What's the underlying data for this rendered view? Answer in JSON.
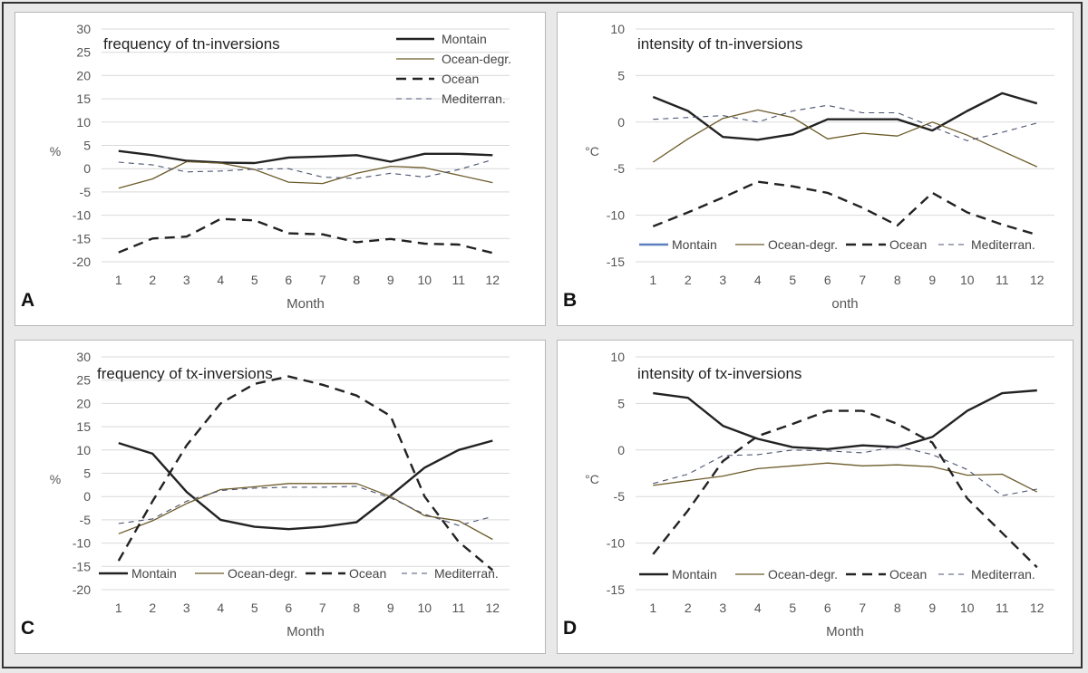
{
  "chart_data": [
    {
      "type": "line",
      "panel_label": "A",
      "title": "frequency of tn-inversions",
      "xlabel": "Month",
      "ylabel": "%",
      "ylim": [
        -20,
        30
      ],
      "yticks": [
        30,
        25,
        20,
        15,
        10,
        5,
        0,
        -5,
        -10,
        -15,
        -20
      ],
      "categories": [
        1,
        2,
        3,
        4,
        5,
        6,
        7,
        8,
        9,
        10,
        11,
        12
      ],
      "legend_position": "top-right",
      "series": [
        {
          "name": "Montain",
          "style": "solid-thick",
          "color": "#222222",
          "values": [
            3.8,
            2.9,
            1.7,
            1.3,
            1.2,
            2.4,
            2.6,
            2.9,
            1.5,
            3.2,
            3.2,
            2.9
          ]
        },
        {
          "name": "Ocean-degr.",
          "style": "solid-thin",
          "color": "#6b5a28",
          "values": [
            -4.2,
            -2.2,
            1.5,
            1.2,
            -0.2,
            -2.9,
            -3.2,
            -1.0,
            0.5,
            0.2,
            -1.4,
            -3.0
          ]
        },
        {
          "name": "Ocean",
          "style": "dash-thick",
          "color": "#222222",
          "values": [
            -18,
            -15,
            -14.6,
            -10.8,
            -11.1,
            -13.9,
            -14.1,
            -15.8,
            -15.1,
            -16.1,
            -16.3,
            -18.1
          ]
        },
        {
          "name": "Mediterran.",
          "style": "dash-thin",
          "color": "#4a5270",
          "values": [
            1.4,
            0.8,
            -0.7,
            -0.5,
            -0.1,
            0,
            -1.8,
            -2.1,
            -1.0,
            -1.8,
            -0.2,
            1.9
          ]
        }
      ]
    },
    {
      "type": "line",
      "panel_label": "B",
      "title": "intensity of tn-inversions",
      "xlabel": "onth",
      "ylabel": "°C",
      "ylim": [
        -15,
        10
      ],
      "yticks": [
        10,
        5,
        0,
        -5,
        -10,
        -15
      ],
      "categories": [
        1,
        2,
        3,
        4,
        5,
        6,
        7,
        8,
        9,
        10,
        11,
        12
      ],
      "legend_position": "bottom",
      "series": [
        {
          "name": "Montain",
          "style": "solid-thick",
          "color": "#222222",
          "legend_color": "#5b7fc0",
          "values": [
            2.7,
            1.2,
            -1.6,
            -1.9,
            -1.3,
            0.3,
            0.3,
            0.3,
            -0.9,
            1.2,
            3.1,
            2.0
          ]
        },
        {
          "name": "Ocean-degr.",
          "style": "solid-thin",
          "color": "#6b5a28",
          "values": [
            -4.3,
            -1.8,
            0.4,
            1.3,
            0.5,
            -1.8,
            -1.2,
            -1.5,
            0,
            -1.4,
            -3.1,
            -4.8
          ]
        },
        {
          "name": "Ocean",
          "style": "dash-thick",
          "color": "#222222",
          "values": [
            -11.2,
            -9.7,
            -8.1,
            -6.4,
            -6.9,
            -7.6,
            -9.2,
            -11.1,
            -7.6,
            -9.7,
            -11,
            -12.1
          ]
        },
        {
          "name": "Mediterran.",
          "style": "dash-thin",
          "color": "#4a5270",
          "values": [
            0.3,
            0.5,
            0.7,
            0,
            1.2,
            1.8,
            1.0,
            1.0,
            -0.5,
            -2.0,
            -1.1,
            -0.1
          ]
        }
      ]
    },
    {
      "type": "line",
      "panel_label": "C",
      "title": "frequency of tx-inversions",
      "xlabel": "Month",
      "ylabel": "%",
      "ylim": [
        -20,
        30
      ],
      "yticks": [
        30,
        25,
        20,
        15,
        10,
        5,
        0,
        -5,
        -10,
        -15,
        -20
      ],
      "categories": [
        1,
        2,
        3,
        4,
        5,
        6,
        7,
        8,
        9,
        10,
        11,
        12
      ],
      "legend_position": "bottom",
      "series": [
        {
          "name": "Montain",
          "style": "solid-thick",
          "color": "#222222",
          "values": [
            11.5,
            9.2,
            1,
            -5,
            -6.5,
            -7,
            -6.5,
            -5.5,
            0.2,
            6.2,
            10,
            12
          ]
        },
        {
          "name": "Ocean-degr.",
          "style": "solid-thin",
          "color": "#6b5a28",
          "values": [
            -8,
            -5.2,
            -1.5,
            1.5,
            2.1,
            2.8,
            2.8,
            2.8,
            0,
            -4.1,
            -5.2,
            -9.2
          ]
        },
        {
          "name": "Ocean",
          "style": "dash-thick",
          "color": "#222222",
          "values": [
            -13.8,
            -1,
            11,
            20,
            24.2,
            25.8,
            24,
            21.7,
            17.3,
            0,
            -9.7,
            -15.8
          ]
        },
        {
          "name": "Mediterran.",
          "style": "dash-thin",
          "color": "#4a5270",
          "values": [
            -5.8,
            -4.8,
            -1,
            1.3,
            1.8,
            2,
            2,
            2.2,
            -0.3,
            -3.8,
            -6.2,
            -4.3
          ]
        }
      ]
    },
    {
      "type": "line",
      "panel_label": "D",
      "title": "intensity of tx-inversions",
      "xlabel": "Month",
      "ylabel": "°C",
      "ylim": [
        -15,
        10
      ],
      "yticks": [
        10,
        5,
        0,
        -5,
        -10,
        -15
      ],
      "categories": [
        1,
        2,
        3,
        4,
        5,
        6,
        7,
        8,
        9,
        10,
        11,
        12
      ],
      "legend_position": "bottom",
      "series": [
        {
          "name": "Montain",
          "style": "solid-thick",
          "color": "#222222",
          "values": [
            6.1,
            5.6,
            2.6,
            1.2,
            0.3,
            0.1,
            0.5,
            0.3,
            1.4,
            4.2,
            6.1,
            6.4
          ]
        },
        {
          "name": "Ocean-degr.",
          "style": "solid-thin",
          "color": "#6b5a28",
          "values": [
            -3.8,
            -3.3,
            -2.8,
            -2.0,
            -1.7,
            -1.4,
            -1.7,
            -1.6,
            -1.8,
            -2.7,
            -2.6,
            -4.5
          ]
        },
        {
          "name": "Ocean",
          "style": "dash-thick",
          "color": "#222222",
          "values": [
            -11.2,
            -6.5,
            -1.2,
            1.5,
            2.8,
            4.2,
            4.2,
            2.8,
            0.8,
            -5.2,
            -8.9,
            -12.6
          ]
        },
        {
          "name": "Mediterran.",
          "style": "dash-thin",
          "color": "#4a5270",
          "values": [
            -3.6,
            -2.6,
            -0.6,
            -0.5,
            0,
            -0.1,
            -0.3,
            0.4,
            -0.5,
            -2.1,
            -4.9,
            -4.2
          ]
        }
      ]
    }
  ]
}
